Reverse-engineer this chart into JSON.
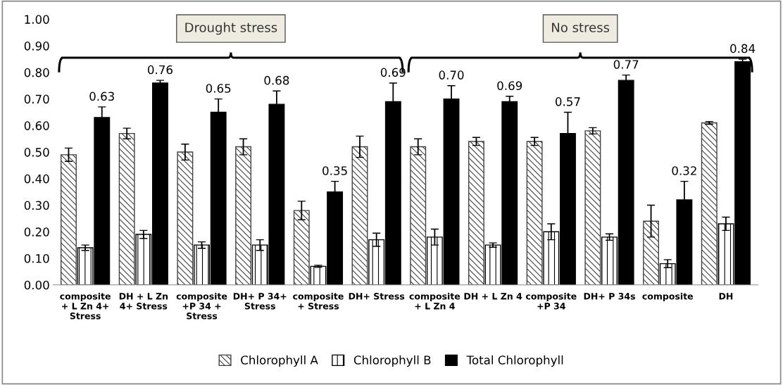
{
  "chart_data": {
    "type": "bar",
    "categories": [
      "composite\n+ L Zn 4+\nStress",
      "DH + L Zn\n4+ Stress",
      "composite\n+P 34 +\nStress",
      "DH+ P 34+\nStress",
      "composite\n+ Stress",
      "DH+ Stress",
      "composite\n+ L Zn 4",
      "DH + L Zn 4",
      "composite\n+P 34",
      "DH+ P 34s",
      "composite",
      "DH"
    ],
    "series": [
      {
        "name": "Chlorophyll A",
        "color": "#404040",
        "values": [
          0.49,
          0.57,
          0.5,
          0.52,
          0.28,
          0.52,
          0.52,
          0.54,
          0.54,
          0.58,
          0.24,
          0.61
        ],
        "errors": [
          0.025,
          0.02,
          0.03,
          0.03,
          0.035,
          0.04,
          0.03,
          0.015,
          0.015,
          0.012,
          0.06,
          0.005
        ]
      },
      {
        "name": "Chlorophyll B",
        "color": "#000000",
        "values": [
          0.14,
          0.19,
          0.15,
          0.15,
          0.07,
          0.17,
          0.18,
          0.15,
          0.2,
          0.18,
          0.08,
          0.23
        ],
        "errors": [
          0.01,
          0.015,
          0.012,
          0.02,
          0.004,
          0.025,
          0.03,
          0.008,
          0.03,
          0.012,
          0.015,
          0.025
        ]
      },
      {
        "name": "Total Chlorophyll",
        "color": "#000000",
        "values": [
          0.63,
          0.76,
          0.65,
          0.68,
          0.35,
          0.69,
          0.7,
          0.69,
          0.57,
          0.77,
          0.32,
          0.84
        ],
        "errors": [
          0.04,
          0.01,
          0.05,
          0.05,
          0.04,
          0.07,
          0.05,
          0.02,
          0.08,
          0.02,
          0.07,
          0.01
        ],
        "value_labels": [
          "0.63",
          "0.76",
          "0.65",
          "0.68",
          "0.35",
          "0.69",
          "0.70",
          "0.69",
          "0.57",
          "0.77",
          "0.32",
          "0.84"
        ]
      }
    ],
    "ylim": [
      0,
      1.0
    ],
    "yticks": [
      {
        "value": 0,
        "label": "0.00"
      },
      {
        "value": 0.1,
        "label": "0.10"
      },
      {
        "value": 0.2,
        "label": "0.20"
      },
      {
        "value": 0.3,
        "label": "0.30"
      },
      {
        "value": 0.4,
        "label": "0.40"
      },
      {
        "value": 0.5,
        "label": "0.50"
      },
      {
        "value": 0.6,
        "label": "0.60"
      },
      {
        "value": 0.7,
        "label": "0.70"
      },
      {
        "value": 0.8,
        "label": "0.80"
      },
      {
        "value": 0.9,
        "label": "0.90"
      },
      {
        "value": 1.0,
        "label": "1.00"
      }
    ],
    "annotations": [
      "Drought stress",
      "No stress"
    ],
    "grid": false,
    "legend": "bottom"
  }
}
